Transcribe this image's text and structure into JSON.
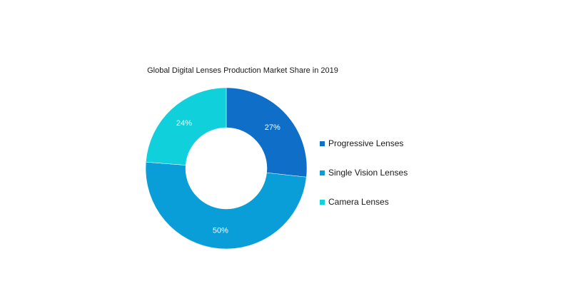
{
  "chart_data": {
    "type": "pie",
    "donut": true,
    "title": "Global Digital Lenses Production Market Share in 2019",
    "slices": [
      {
        "label": "Progressive Lenses",
        "value": 27,
        "display": "27%",
        "color": "#0f6ec8"
      },
      {
        "label": "Single Vision Lenses",
        "value": 50,
        "display": "50%",
        "color": "#0a9ed8"
      },
      {
        "label": "Camera Lenses",
        "value": 24,
        "display": "24%",
        "color": "#10d0dc"
      }
    ],
    "legend_position": "right"
  }
}
